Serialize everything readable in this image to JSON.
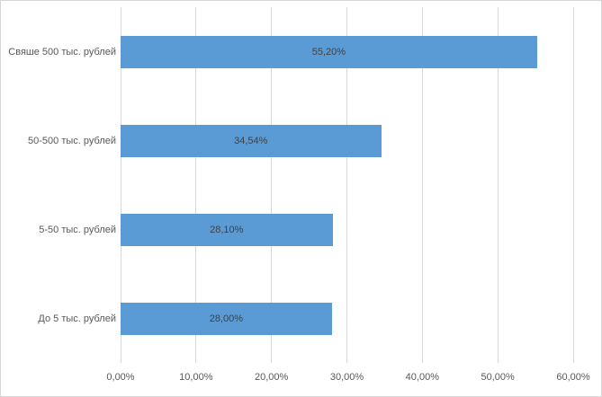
{
  "chart_data": {
    "type": "bar",
    "orientation": "horizontal",
    "title": "",
    "xlabel": "",
    "ylabel": "",
    "categories": [
      "Свяше 500 тыс. рублей",
      "50-500 тыс. рублей",
      "5-50 тыс. рублей",
      "До 5 тыс. рублей"
    ],
    "values": [
      55.2,
      34.54,
      28.1,
      28.0
    ],
    "data_labels": [
      "55,20%",
      "34,54%",
      "28,10%",
      "28,00%"
    ],
    "data_label_position": "center",
    "x_ticks": [
      "0,00%",
      "10,00%",
      "20,00%",
      "30,00%",
      "40,00%",
      "50,00%",
      "60,00%"
    ],
    "x_tick_values": [
      0,
      10,
      20,
      30,
      40,
      50,
      60
    ],
    "xlim": [
      0,
      60
    ],
    "grid": "vertical-only",
    "legend": "none",
    "colors": {
      "bar": "#5b9bd5",
      "gridline": "#d9d9d9",
      "data_label_text": "#404040",
      "axis_text": "#595959",
      "chart_border": "#d7d7d7",
      "background": "#ffffff"
    }
  }
}
